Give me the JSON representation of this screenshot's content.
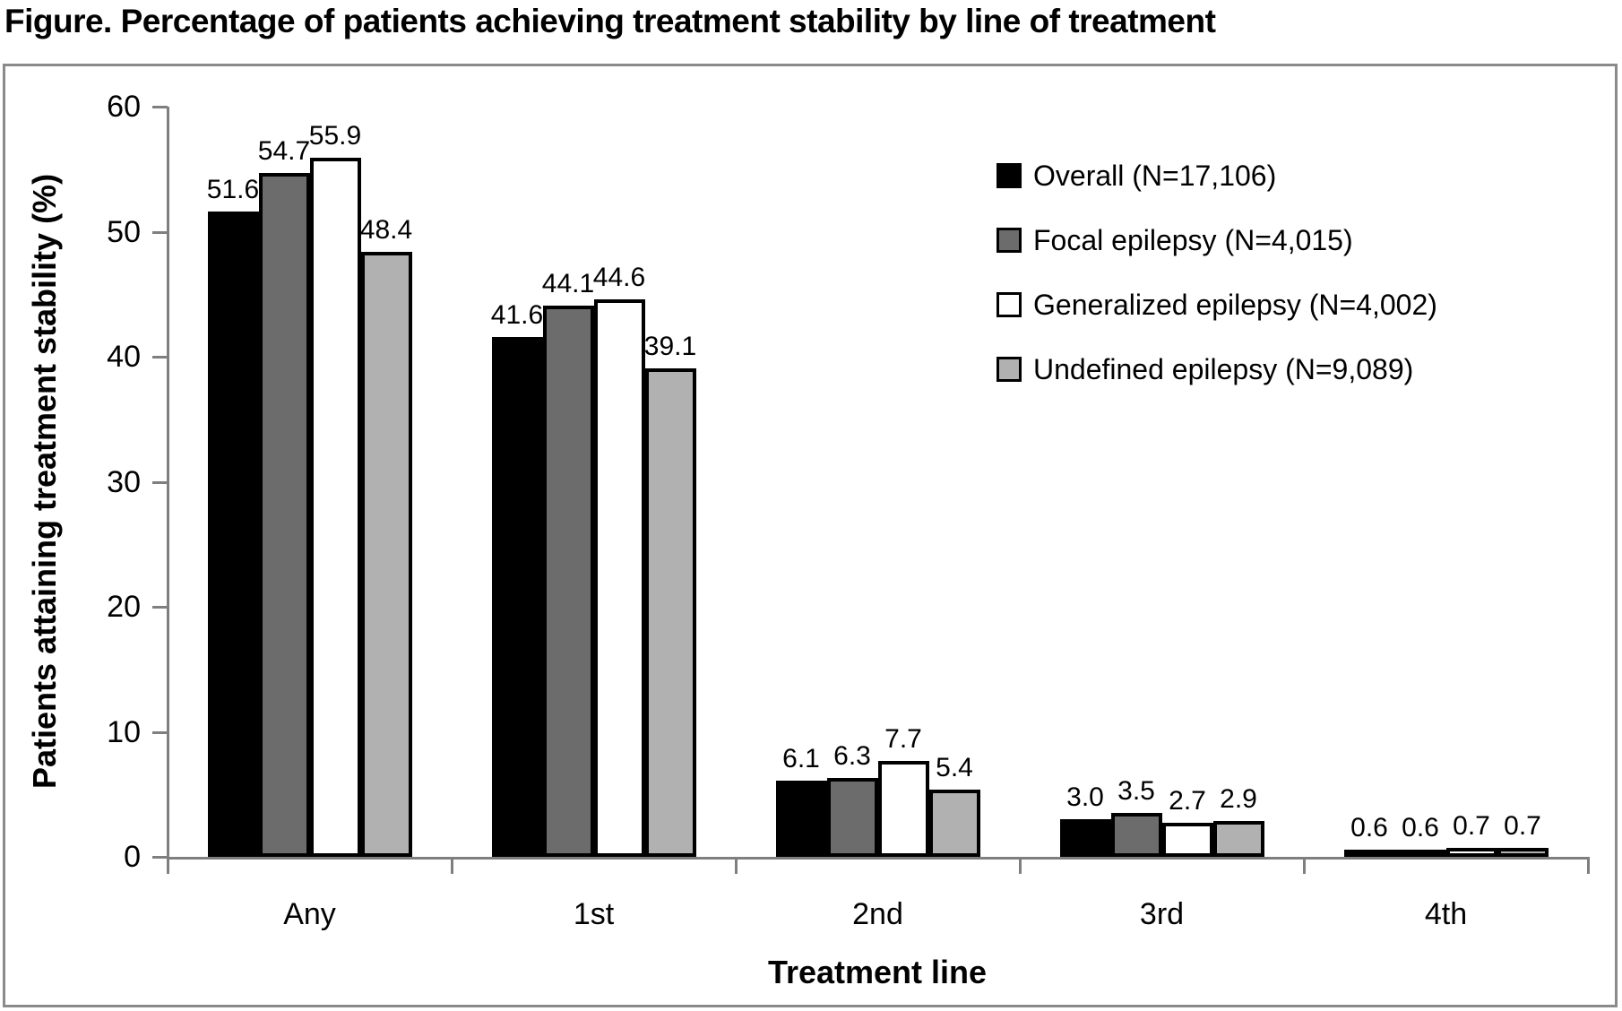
{
  "title": "Figure. Percentage of patients achieving treatment stability by line of treatment",
  "chart_data": {
    "type": "bar",
    "title": "Figure. Percentage of patients achieving treatment stability by line of treatment",
    "categories": [
      "Any",
      "1st",
      "2nd",
      "3rd",
      "4th"
    ],
    "series": [
      {
        "name": "Overall (N=17,106)",
        "color": "#000000",
        "values": [
          51.6,
          41.6,
          6.1,
          3.0,
          0.6
        ]
      },
      {
        "name": "Focal epilepsy (N=4,015)",
        "color": "#6c6c6c",
        "values": [
          54.7,
          44.1,
          6.3,
          3.5,
          0.6
        ]
      },
      {
        "name": "Generalized epilepsy (N=4,002)",
        "color": "#ffffff",
        "values": [
          55.9,
          44.6,
          7.7,
          2.7,
          0.7
        ]
      },
      {
        "name": "Undefined epilepsy (N=9,089)",
        "color": "#b1b1b1",
        "values": [
          48.4,
          39.1,
          5.4,
          2.9,
          0.7
        ]
      }
    ],
    "xlabel": "Treatment line",
    "ylabel": "Patients attaining treatment stability (%)",
    "ylim": [
      0,
      60
    ],
    "yticks": [
      0,
      10,
      20,
      30,
      40,
      50,
      60
    ],
    "value_label_decimals": 1,
    "bar_border_color": "#000000",
    "axis_color": "#7f7f7f",
    "frame_border_color": "#8a8a8a",
    "grid": false,
    "legend_position": "inside-top-right"
  }
}
